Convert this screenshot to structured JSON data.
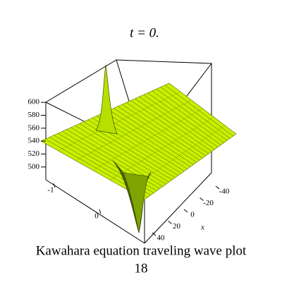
{
  "chart_data": {
    "type": "surface",
    "title": "t = 0.",
    "color": "#c8f000",
    "zlim": [
      490,
      610
    ],
    "zticks": [
      500,
      520,
      540,
      560,
      580,
      600
    ],
    "xlim": [
      -50,
      50
    ],
    "xticks": [
      -40,
      -20,
      0,
      20,
      40
    ],
    "xlabel": "x",
    "ylim": [
      -1.5,
      1.5
    ],
    "yticks": [
      -1,
      0
    ],
    "caption": [
      "Kawahara equation  traveling wave plot",
      "18"
    ]
  }
}
